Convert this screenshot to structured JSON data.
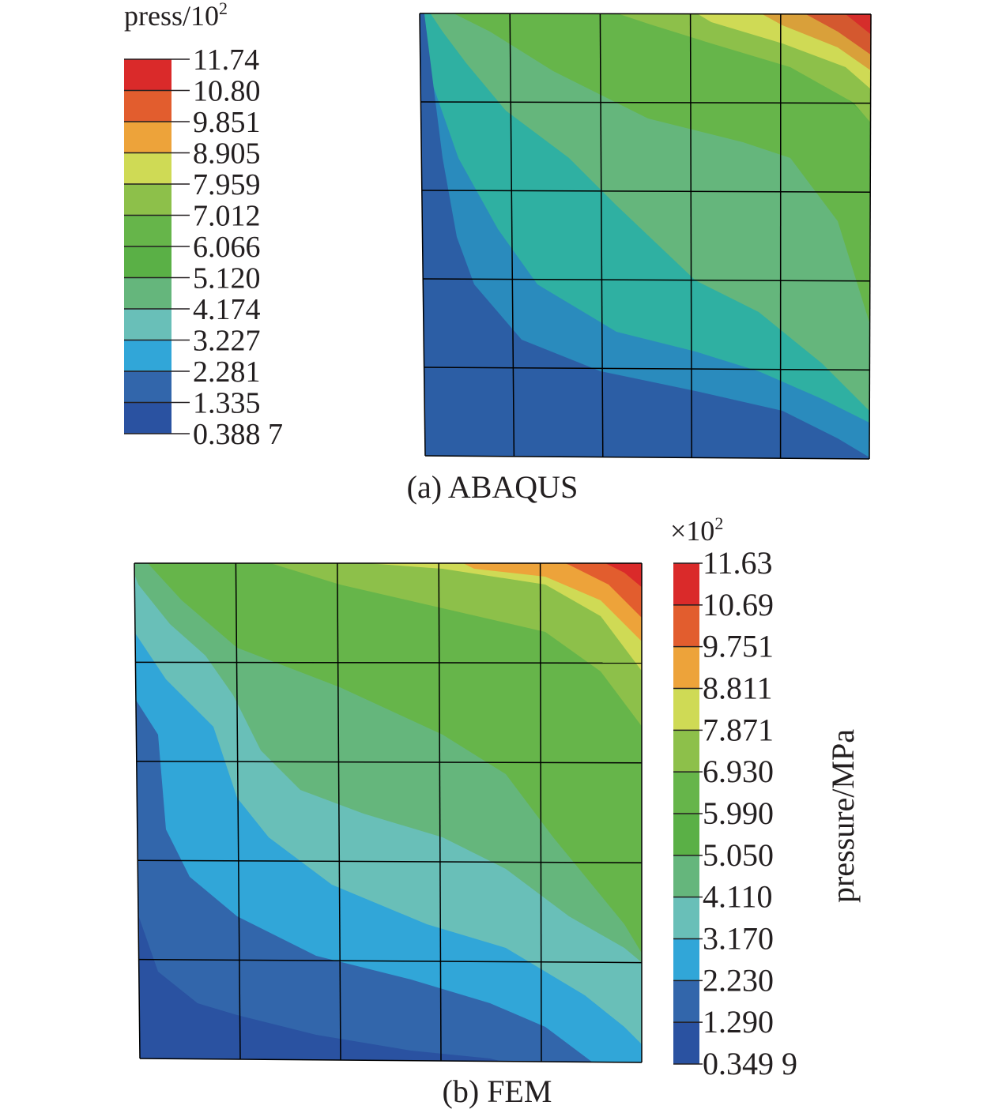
{
  "panel_a": {
    "caption": "(a) ABAQUS",
    "legend": {
      "title": "press/10",
      "title_exp": "2",
      "values": [
        "11.74",
        "10.80",
        "9.851",
        "8.905",
        "7.959",
        "7.012",
        "6.066",
        "5.120",
        "4.174",
        "3.227",
        "2.281",
        "1.335",
        "0.388 7"
      ]
    },
    "mesh": {
      "rows": 5,
      "cols": 5
    }
  },
  "panel_b": {
    "caption": "(b) FEM",
    "legend": {
      "multiplier": "×10",
      "multiplier_exp": "2",
      "unit_label": "pressure/MPa",
      "values": [
        "11.63",
        "10.69",
        "9.751",
        "8.811",
        "7.871",
        "6.930",
        "5.990",
        "5.050",
        "4.110",
        "3.170",
        "2.230",
        "1.290",
        "0.349 9"
      ]
    },
    "mesh": {
      "rows": 5,
      "cols": 5
    }
  },
  "colors": {
    "band_top_to_bottom": [
      "#da2a2a",
      "#e25d2e",
      "#eda33a",
      "#cfda55",
      "#8dc04a",
      "#66b54a",
      "#5ab046",
      "#65b67c",
      "#69bfb8",
      "#31a6d8",
      "#3266ab",
      "#2a52a1"
    ],
    "mesh_line": "#000000"
  }
}
